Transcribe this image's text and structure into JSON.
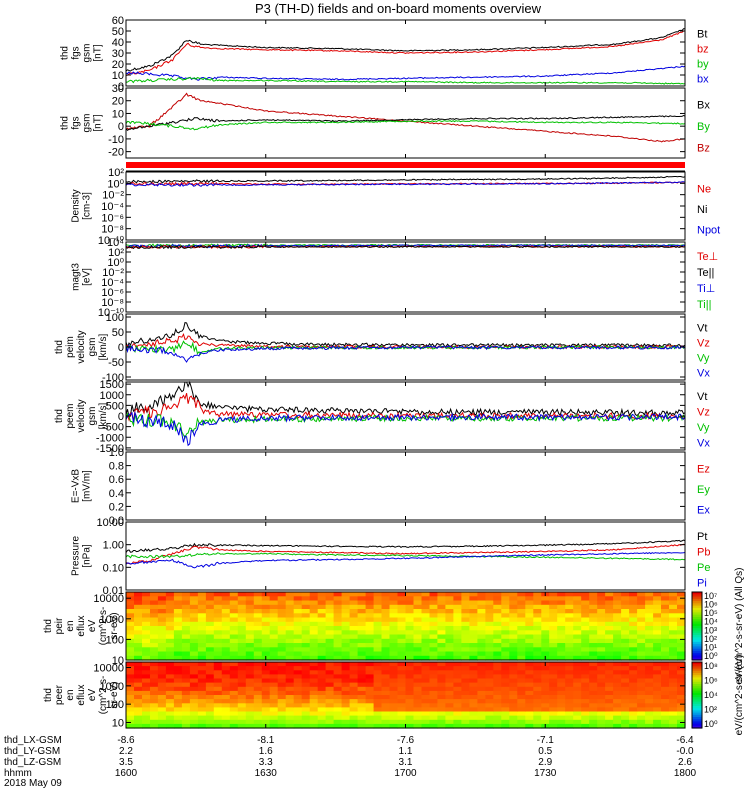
{
  "title": "P3 (TH-D) fields and on-board moments overview",
  "colors": {
    "black": "#000000",
    "red": "#e00000",
    "green": "#00c000",
    "blue": "#0000e0",
    "dark_red": "#c00000",
    "frame": "#000000"
  },
  "chart_data": [
    {
      "type": "line",
      "id": "fgs_mag",
      "ylabel": [
        "thd",
        "fgs",
        "gsm",
        "[nT]"
      ],
      "ylim": [
        0,
        60
      ],
      "yticks": [
        "60",
        "50",
        "40",
        "30",
        "20",
        "10",
        "0"
      ],
      "legend": [
        {
          "label": "Bt",
          "color": "#000000"
        },
        {
          "label": "bz",
          "color": "#e00000"
        },
        {
          "label": "by",
          "color": "#00c000"
        },
        {
          "label": "bx",
          "color": "#0000e0"
        }
      ],
      "series": [
        {
          "color": "#000000",
          "x": [
            1600,
            1605,
            1610,
            1613,
            1616,
            1620,
            1630,
            1645,
            1700,
            1715,
            1730,
            1745,
            1755,
            1800
          ],
          "y": [
            14,
            18,
            28,
            42,
            38,
            37,
            35,
            34,
            32,
            33,
            35,
            38,
            44,
            52
          ]
        },
        {
          "color": "#e00000",
          "x": [
            1600,
            1605,
            1610,
            1613,
            1616,
            1620,
            1630,
            1645,
            1700,
            1715,
            1730,
            1745,
            1755,
            1800
          ],
          "y": [
            10,
            14,
            24,
            38,
            35,
            34,
            33,
            32,
            30,
            31,
            33,
            36,
            42,
            50
          ]
        },
        {
          "color": "#0000e0",
          "x": [
            1600,
            1605,
            1610,
            1615,
            1620,
            1630,
            1645,
            1700,
            1715,
            1730,
            1745,
            1800
          ],
          "y": [
            12,
            11,
            9,
            6,
            8,
            7,
            6,
            7,
            8,
            9,
            12,
            18
          ]
        },
        {
          "color": "#00c000",
          "x": [
            1600,
            1605,
            1610,
            1615,
            1620,
            1630,
            1645,
            1700,
            1715,
            1730,
            1745,
            1800
          ],
          "y": [
            4,
            5,
            6,
            7,
            5,
            5,
            4,
            4,
            3,
            3,
            3,
            2
          ]
        }
      ]
    },
    {
      "type": "line",
      "id": "fgs_mag_components",
      "ylabel": [
        "thd",
        "fgs",
        "gsm",
        "[nT]"
      ],
      "ylim": [
        -25,
        30
      ],
      "yticks": [
        "30",
        "20",
        "10",
        "0",
        "-10",
        "-20"
      ],
      "legend": [
        {
          "label": "Bx",
          "color": "#000000"
        },
        {
          "label": "By",
          "color": "#00c000"
        },
        {
          "label": "Bz",
          "color": "#c00000"
        }
      ],
      "series": [
        {
          "color": "#c00000",
          "x": [
            1600,
            1605,
            1610,
            1613,
            1616,
            1620,
            1630,
            1645,
            1700,
            1715,
            1730,
            1745,
            1755,
            1800
          ],
          "y": [
            -2,
            0,
            15,
            25,
            20,
            18,
            12,
            8,
            4,
            0,
            -4,
            -8,
            -12,
            -10
          ]
        },
        {
          "color": "#000000",
          "x": [
            1600,
            1605,
            1610,
            1615,
            1620,
            1630,
            1645,
            1700,
            1715,
            1730,
            1745,
            1800
          ],
          "y": [
            -3,
            0,
            3,
            6,
            4,
            5,
            4,
            5,
            6,
            6,
            7,
            8
          ]
        },
        {
          "color": "#00c000",
          "x": [
            1600,
            1605,
            1610,
            1615,
            1620,
            1630,
            1645,
            1700,
            1715,
            1730,
            1745,
            1800
          ],
          "y": [
            3,
            2,
            0,
            -2,
            1,
            3,
            3,
            4,
            4,
            3,
            3,
            2
          ]
        }
      ]
    },
    {
      "type": "line",
      "id": "density",
      "ylabel": [
        "Density",
        "[cm-3]"
      ],
      "yscale": "log",
      "ylim": [
        1e-10,
        100
      ],
      "yticks": [
        "10²",
        "10⁰",
        "10⁻²",
        "10⁻⁴",
        "10⁻⁶",
        "10⁻⁸",
        "10⁻¹⁰"
      ],
      "legend": [
        {
          "label": "Ne",
          "color": "#e00000"
        },
        {
          "label": "Ni",
          "color": "#000000"
        },
        {
          "label": "Npot",
          "color": "#0000e0"
        }
      ],
      "series": [
        {
          "color": "#000000",
          "x": [
            1600,
            1620,
            1640,
            1700,
            1720,
            1740,
            1800
          ],
          "y": [
            2,
            2.5,
            3,
            4,
            5,
            7,
            15
          ]
        },
        {
          "color": "#e00000",
          "x": [
            1600,
            1620,
            1640,
            1700,
            1720,
            1740,
            1800
          ],
          "y": [
            0.8,
            0.8,
            0.7,
            0.8,
            0.9,
            1,
            1.5
          ]
        },
        {
          "color": "#0000e0",
          "x": [
            1600,
            1620,
            1640,
            1700,
            1720,
            1740,
            1800
          ],
          "y": [
            0.6,
            0.5,
            0.6,
            0.7,
            0.8,
            1,
            1.6
          ]
        }
      ]
    },
    {
      "type": "line",
      "id": "temperature",
      "ylabel": [
        "magt3",
        "[eV]"
      ],
      "yscale": "log",
      "ylim": [
        1e-10,
        10000
      ],
      "yticks": [
        "10⁴",
        "10²",
        "10⁰",
        "10⁻²",
        "10⁻⁴",
        "10⁻⁶",
        "10⁻⁸",
        "10⁻¹⁰"
      ],
      "legend": [
        {
          "label": "Te⊥",
          "color": "#e00000"
        },
        {
          "label": "Te||",
          "color": "#000000"
        },
        {
          "label": "Ti⊥",
          "color": "#0000e0"
        },
        {
          "label": "Ti||",
          "color": "#00c000"
        }
      ],
      "series": [
        {
          "color": "#00c000",
          "x": [
            1600,
            1630,
            1700,
            1730,
            1800
          ],
          "y": [
            2000,
            2200,
            2500,
            2400,
            2300
          ]
        },
        {
          "color": "#0000e0",
          "x": [
            1600,
            1630,
            1700,
            1730,
            1800
          ],
          "y": [
            1500,
            1700,
            2000,
            2100,
            2000
          ]
        },
        {
          "color": "#e00000",
          "x": [
            1600,
            1630,
            1700,
            1730,
            1800
          ],
          "y": [
            1000,
            1100,
            1200,
            1200,
            1150
          ]
        },
        {
          "color": "#000000",
          "x": [
            1600,
            1630,
            1700,
            1730,
            1800
          ],
          "y": [
            900,
            1000,
            1100,
            1100,
            1050
          ]
        }
      ]
    },
    {
      "type": "line",
      "id": "ion_velocity",
      "ylabel": [
        "thd",
        "peim",
        "velocity",
        "gsm",
        "[km/s]"
      ],
      "ylim": [
        -110,
        110
      ],
      "yticks": [
        "100",
        "50",
        "0",
        "-50",
        "-100"
      ],
      "legend": [
        {
          "label": "Vt",
          "color": "#000000"
        },
        {
          "label": "Vz",
          "color": "#e00000"
        },
        {
          "label": "Vy",
          "color": "#00c000"
        },
        {
          "label": "Vx",
          "color": "#0000e0"
        }
      ],
      "series": [
        {
          "color": "#000000",
          "x": [
            1600,
            1610,
            1613,
            1616,
            1620,
            1630,
            1645,
            1700,
            1730,
            1800
          ],
          "y": [
            10,
            40,
            75,
            35,
            20,
            12,
            8,
            7,
            6,
            6
          ]
        },
        {
          "color": "#e00000",
          "x": [
            1600,
            1610,
            1613,
            1616,
            1620,
            1630,
            1645,
            1700,
            1730,
            1800
          ],
          "y": [
            0,
            20,
            35,
            10,
            5,
            2,
            1,
            0,
            0,
            0
          ]
        },
        {
          "color": "#00c000",
          "x": [
            1600,
            1610,
            1613,
            1616,
            1620,
            1630,
            1645,
            1700,
            1730,
            1800
          ],
          "y": [
            -5,
            -10,
            20,
            -20,
            -5,
            -3,
            -2,
            -2,
            -1,
            -1
          ]
        },
        {
          "color": "#0000e0",
          "x": [
            1600,
            1610,
            1613,
            1616,
            1620,
            1630,
            1645,
            1700,
            1730,
            1800
          ],
          "y": [
            -5,
            -15,
            -45,
            -20,
            -10,
            -5,
            -3,
            -2,
            -2,
            -2
          ]
        }
      ]
    },
    {
      "type": "line",
      "id": "electron_velocity",
      "ylabel": [
        "thd",
        "peem",
        "velocity",
        "gsm",
        "[km/s]"
      ],
      "ylim": [
        -1600,
        1600
      ],
      "yticks": [
        "1500",
        "1000",
        "500",
        "0",
        "-500",
        "-1000",
        "-1500"
      ],
      "legend": [
        {
          "label": "Vt",
          "color": "#000000"
        },
        {
          "label": "Vz",
          "color": "#e00000"
        },
        {
          "label": "Vy",
          "color": "#00c000"
        },
        {
          "label": "Vx",
          "color": "#0000e0"
        }
      ],
      "series": [
        {
          "color": "#000000",
          "x": [
            1600,
            1610,
            1613,
            1616,
            1620,
            1630,
            1645,
            1700,
            1730,
            1800
          ],
          "y": [
            200,
            800,
            1500,
            600,
            400,
            300,
            250,
            200,
            180,
            150
          ]
        },
        {
          "color": "#e00000",
          "x": [
            1600,
            1610,
            1613,
            1616,
            1620,
            1630,
            1645,
            1700,
            1730,
            1800
          ],
          "y": [
            0,
            400,
            900,
            300,
            100,
            50,
            30,
            20,
            10,
            0
          ]
        },
        {
          "color": "#00c000",
          "x": [
            1600,
            1610,
            1613,
            1616,
            1620,
            1630,
            1645,
            1700,
            1730,
            1800
          ],
          "y": [
            -100,
            -300,
            -800,
            -300,
            -200,
            -150,
            -120,
            -100,
            -100,
            -100
          ]
        },
        {
          "color": "#0000e0",
          "x": [
            1600,
            1610,
            1613,
            1616,
            1620,
            1630,
            1645,
            1700,
            1730,
            1800
          ],
          "y": [
            -100,
            -400,
            -1200,
            -400,
            -200,
            -100,
            -80,
            -60,
            -50,
            -50
          ]
        }
      ]
    },
    {
      "type": "line",
      "id": "efield",
      "ylabel": [
        "E=-VxB",
        "[mV/m]"
      ],
      "ylim": [
        0,
        1
      ],
      "yticks": [
        "1.0",
        "0.8",
        "0.6",
        "0.4",
        "0.2",
        "0.0"
      ],
      "legend": [
        {
          "label": "Ez",
          "color": "#e00000"
        },
        {
          "label": "Ey",
          "color": "#00c000"
        },
        {
          "label": "Ex",
          "color": "#0000e0"
        }
      ],
      "series": []
    },
    {
      "type": "line",
      "id": "pressure",
      "ylabel": [
        "Pressure",
        "[nPa]"
      ],
      "yscale": "log",
      "ylim": [
        0.01,
        10
      ],
      "yticks": [
        "10.00",
        "1.00",
        "0.10",
        "0.01"
      ],
      "legend": [
        {
          "label": "Pt",
          "color": "#000000"
        },
        {
          "label": "Pb",
          "color": "#e00000"
        },
        {
          "label": "Pe",
          "color": "#00c000"
        },
        {
          "label": "Pi",
          "color": "#0000e0"
        }
      ],
      "series": [
        {
          "color": "#000000",
          "x": [
            1600,
            1610,
            1615,
            1620,
            1630,
            1645,
            1700,
            1715,
            1730,
            1745,
            1800
          ],
          "y": [
            0.5,
            0.7,
            1.0,
            0.95,
            0.9,
            0.85,
            0.8,
            0.85,
            0.95,
            1.1,
            1.5
          ]
        },
        {
          "color": "#e00000",
          "x": [
            1600,
            1605,
            1610,
            1615,
            1620,
            1630,
            1645,
            1700,
            1715,
            1730,
            1745,
            1800
          ],
          "y": [
            0.15,
            0.2,
            0.4,
            0.8,
            0.6,
            0.5,
            0.45,
            0.4,
            0.45,
            0.5,
            0.6,
            1.0
          ]
        },
        {
          "color": "#00c000",
          "x": [
            1600,
            1610,
            1615,
            1620,
            1630,
            1645,
            1700,
            1715,
            1730,
            1745,
            1800
          ],
          "y": [
            0.3,
            0.3,
            0.35,
            0.4,
            0.4,
            0.35,
            0.33,
            0.3,
            0.28,
            0.25,
            0.22
          ]
        },
        {
          "color": "#0000e0",
          "x": [
            1600,
            1610,
            1615,
            1620,
            1630,
            1645,
            1700,
            1715,
            1730,
            1745,
            1800
          ],
          "y": [
            0.15,
            0.2,
            0.1,
            0.15,
            0.2,
            0.22,
            0.25,
            0.3,
            0.35,
            0.4,
            0.45
          ]
        }
      ]
    },
    {
      "type": "heatmap",
      "id": "ion_spectrogram",
      "ylabel": [
        "thd",
        "peir",
        "en",
        "eflux",
        "eV",
        "(cm^2-s-",
        "sr-eV)"
      ],
      "yscale": "log",
      "ylim": [
        10,
        20000
      ],
      "yticks": [
        "10000",
        "1000",
        "100",
        "10"
      ],
      "colorbar_ticks": [
        "10⁷",
        "10⁶",
        "10⁵",
        "10⁴",
        "10³",
        "10²",
        "10¹",
        "10⁰"
      ],
      "colorbar_label": "eV/(cm^2-s-sr-eV) (All Qs)",
      "dominant_band": "yellow-orange with green at low energies",
      "colorbar_min_log": 0,
      "colorbar_max_log": 7
    },
    {
      "type": "heatmap",
      "id": "electron_spectrogram",
      "ylabel": [
        "thd",
        "peer",
        "en",
        "eflux",
        "eV",
        "(cm^2-s-",
        "sr-eV)"
      ],
      "yscale": "log",
      "ylim": [
        5,
        20000
      ],
      "yticks": [
        "10000",
        "1000",
        "100",
        "10"
      ],
      "colorbar_ticks": [
        "10⁸",
        "10⁶",
        "10⁴",
        "10²",
        "10⁰"
      ],
      "colorbar_label": "eV/(cm^2-s-sr-eV)",
      "dominant_band": "red-orange with yellow/green at low energies",
      "colorbar_min_log": 0,
      "colorbar_max_log": 8
    }
  ],
  "x_axis": {
    "range_hhmm": [
      1600,
      1800
    ],
    "rows": [
      {
        "label": "thd_LX-GSM",
        "values": [
          "-8.6",
          "-8.1",
          "-7.6",
          "-7.1",
          "-6.4"
        ]
      },
      {
        "label": "thd_LY-GSM",
        "values": [
          "2.2",
          "1.6",
          "1.1",
          "0.5",
          "-0.0"
        ]
      },
      {
        "label": "thd_LZ-GSM",
        "values": [
          "3.5",
          "3.3",
          "3.1",
          "2.9",
          "2.6"
        ]
      },
      {
        "label": "hhmm",
        "values": [
          "1600",
          "1630",
          "1700",
          "1730",
          "1800"
        ]
      }
    ],
    "date_label": "2018 May 09"
  }
}
